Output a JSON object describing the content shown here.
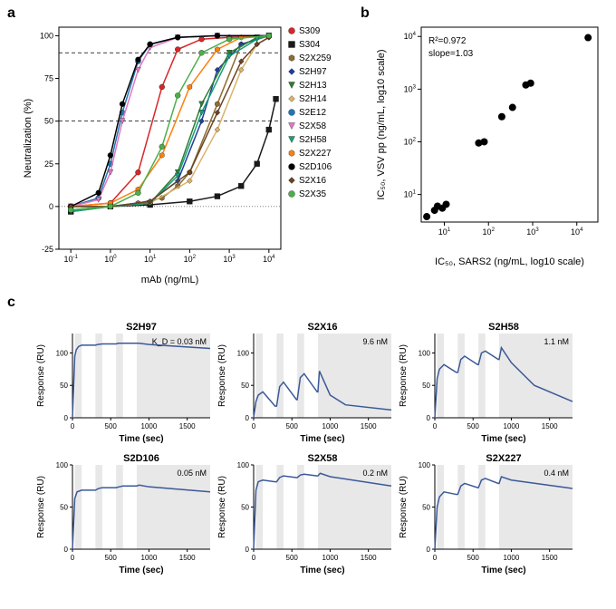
{
  "panel_a": {
    "label": "a",
    "type": "line",
    "xlabel": "mAb (ng/mL)",
    "ylabel": "Neutralization (%)",
    "xscale": "log",
    "xlim": [
      0.05,
      20000
    ],
    "ylim": [
      -25,
      105
    ],
    "yticks": [
      -25,
      0,
      25,
      50,
      75,
      100
    ],
    "xticks_exp": [
      -1,
      0,
      1,
      2,
      3,
      4
    ],
    "dash_lines_y": [
      50,
      90
    ],
    "legend": [
      {
        "name": "S309",
        "color": "#d62728",
        "marker": "circle"
      },
      {
        "name": "S304",
        "color": "#1a1a1a",
        "marker": "square"
      },
      {
        "name": "S2X259",
        "color": "#8c6d31",
        "marker": "hex"
      },
      {
        "name": "S2H97",
        "color": "#1f3f9e",
        "marker": "diamond"
      },
      {
        "name": "S2H13",
        "color": "#2e7d32",
        "marker": "tri-down"
      },
      {
        "name": "S2H14",
        "color": "#d9b36c",
        "marker": "diamond"
      },
      {
        "name": "S2E12",
        "color": "#1f77b4",
        "marker": "circle"
      },
      {
        "name": "S2X58",
        "color": "#e377c2",
        "marker": "tri-down"
      },
      {
        "name": "S2H58",
        "color": "#1b9e77",
        "marker": "tri-down"
      },
      {
        "name": "S2X227",
        "color": "#ff7f0e",
        "marker": "hex"
      },
      {
        "name": "S2D106",
        "color": "#000000",
        "marker": "circle"
      },
      {
        "name": "S2X16",
        "color": "#6b4423",
        "marker": "diamond"
      },
      {
        "name": "S2X35",
        "color": "#4daf4a",
        "marker": "circle"
      }
    ],
    "series": [
      {
        "name": "S309",
        "color": "#d62728",
        "marker": "circle",
        "x": [
          0.1,
          1,
          5,
          20,
          50,
          200,
          1000,
          10000
        ],
        "y": [
          0,
          2,
          20,
          70,
          92,
          98,
          99,
          100
        ]
      },
      {
        "name": "S304",
        "color": "#1a1a1a",
        "marker": "square",
        "x": [
          0.1,
          1,
          10,
          100,
          500,
          2000,
          5000,
          10000,
          15000
        ],
        "y": [
          -3,
          0,
          1,
          3,
          6,
          12,
          25,
          45,
          63
        ]
      },
      {
        "name": "S2X259",
        "color": "#8c6d31",
        "marker": "hex",
        "x": [
          0.1,
          1,
          5,
          20,
          50,
          100,
          500,
          2000,
          10000
        ],
        "y": [
          0,
          0,
          2,
          5,
          12,
          20,
          60,
          95,
          100
        ]
      },
      {
        "name": "S2H97",
        "color": "#1f3f9e",
        "marker": "diamond",
        "x": [
          0.1,
          1,
          10,
          50,
          200,
          500,
          2000,
          10000
        ],
        "y": [
          0,
          0,
          3,
          15,
          50,
          80,
          95,
          100
        ]
      },
      {
        "name": "S2H13",
        "color": "#2e7d32",
        "marker": "tri-down",
        "x": [
          0.1,
          1,
          10,
          50,
          200,
          1000,
          5000,
          10000
        ],
        "y": [
          -2,
          0,
          2,
          20,
          60,
          90,
          99,
          100
        ]
      },
      {
        "name": "S2H14",
        "color": "#d9b36c",
        "marker": "diamond",
        "x": [
          0.1,
          1,
          10,
          100,
          500,
          2000,
          5000,
          10000
        ],
        "y": [
          0,
          0,
          2,
          15,
          45,
          80,
          95,
          99
        ]
      },
      {
        "name": "S2E12",
        "color": "#1f77b4",
        "marker": "circle",
        "x": [
          0.1,
          0.5,
          1,
          2,
          5,
          10,
          50,
          500,
          10000
        ],
        "y": [
          0,
          5,
          25,
          55,
          85,
          95,
          99,
          100,
          100
        ]
      },
      {
        "name": "S2X58",
        "color": "#e377c2",
        "marker": "tri-down",
        "x": [
          0.1,
          0.5,
          1,
          2,
          5,
          10,
          50,
          500,
          10000
        ],
        "y": [
          0,
          4,
          20,
          50,
          80,
          93,
          99,
          100,
          100
        ]
      },
      {
        "name": "S2H58",
        "color": "#1b9e77",
        "marker": "tri-down",
        "x": [
          0.1,
          1,
          10,
          50,
          200,
          1000,
          5000,
          10000
        ],
        "y": [
          -3,
          0,
          2,
          18,
          55,
          88,
          98,
          100
        ]
      },
      {
        "name": "S2X227",
        "color": "#ff7f0e",
        "marker": "hex",
        "x": [
          0.1,
          1,
          5,
          20,
          100,
          500,
          2000,
          10000
        ],
        "y": [
          0,
          2,
          10,
          30,
          70,
          92,
          99,
          100
        ]
      },
      {
        "name": "S2D106",
        "color": "#000000",
        "marker": "circle",
        "x": [
          0.1,
          0.5,
          1,
          2,
          5,
          10,
          50,
          500,
          10000
        ],
        "y": [
          0,
          8,
          30,
          60,
          86,
          95,
          99,
          100,
          100
        ]
      },
      {
        "name": "S2X16",
        "color": "#6b4423",
        "marker": "diamond",
        "x": [
          0.1,
          1,
          10,
          100,
          500,
          2000,
          5000,
          10000
        ],
        "y": [
          0,
          0,
          3,
          20,
          55,
          85,
          95,
          99
        ]
      },
      {
        "name": "S2X35",
        "color": "#4daf4a",
        "marker": "circle",
        "x": [
          0.1,
          1,
          5,
          20,
          50,
          200,
          1000,
          10000
        ],
        "y": [
          -2,
          0,
          8,
          35,
          65,
          90,
          98,
          100
        ]
      }
    ],
    "label_fontsize": 11,
    "tick_fontsize": 9,
    "axis_color": "#000000",
    "background_color": "#ffffff"
  },
  "panel_b": {
    "label": "b",
    "type": "scatter",
    "xlabel": "IC₅₀, SARS2 (ng/mL, log10 scale)",
    "ylabel": "IC₅₀, VSV pp (ng/mL, log10 scale)",
    "xscale": "log",
    "yscale": "log",
    "xlim": [
      3,
      30000
    ],
    "ylim": [
      3,
      15000
    ],
    "xticks_exp": [
      1,
      2,
      3,
      4
    ],
    "yticks_exp": [
      1,
      2,
      3,
      4
    ],
    "annotation": [
      "R²=0.972",
      "slope=1.03"
    ],
    "points": [
      {
        "x": 4,
        "y": 3.8
      },
      {
        "x": 6,
        "y": 5
      },
      {
        "x": 7,
        "y": 6
      },
      {
        "x": 9,
        "y": 5.5
      },
      {
        "x": 11,
        "y": 6.5
      },
      {
        "x": 60,
        "y": 95
      },
      {
        "x": 80,
        "y": 100
      },
      {
        "x": 200,
        "y": 300
      },
      {
        "x": 350,
        "y": 450
      },
      {
        "x": 700,
        "y": 1200
      },
      {
        "x": 900,
        "y": 1300
      },
      {
        "x": 18000,
        "y": 9500
      }
    ],
    "marker_color": "#000000",
    "marker_size": 4,
    "label_fontsize": 11,
    "tick_fontsize": 9
  },
  "panel_c": {
    "label": "c",
    "type": "line",
    "xlabel": "Time (sec)",
    "ylabel": "Response (RU)",
    "xlim": [
      0,
      1800
    ],
    "ylim_top": [
      0,
      130
    ],
    "ylim_bottom": [
      0,
      100
    ],
    "xticks": [
      0,
      500,
      1000,
      1500
    ],
    "yticks_top": [
      0,
      50,
      100
    ],
    "yticks_bottom": [
      0,
      50,
      100
    ],
    "line_color": "#3b5998",
    "shade_color": "#e8e8e8",
    "shade_regions": [
      [
        30,
        120
      ],
      [
        300,
        390
      ],
      [
        570,
        660
      ],
      [
        840,
        1800
      ]
    ],
    "line_width": 1.5,
    "subplots": [
      {
        "title": "S2H97",
        "kd_prefix": "K_D = ",
        "kd": "0.03 nM",
        "row": 0,
        "col": 0,
        "x": [
          0,
          30,
          50,
          80,
          120,
          280,
          300,
          330,
          390,
          560,
          570,
          600,
          660,
          830,
          840,
          870,
          1000,
          1800
        ],
        "y": [
          0,
          95,
          105,
          110,
          112,
          112,
          112,
          113,
          114,
          114,
          114,
          115,
          115,
          115,
          115,
          115,
          113,
          107
        ]
      },
      {
        "title": "S2X16",
        "kd": "9.6 nM",
        "row": 0,
        "col": 1,
        "x": [
          0,
          30,
          60,
          120,
          280,
          300,
          340,
          390,
          560,
          570,
          610,
          660,
          830,
          840,
          860,
          1000,
          1200,
          1800
        ],
        "y": [
          0,
          25,
          35,
          40,
          18,
          18,
          48,
          55,
          28,
          28,
          62,
          68,
          40,
          40,
          72,
          35,
          20,
          12
        ]
      },
      {
        "title": "S2H58",
        "kd": "1.1 nM",
        "row": 0,
        "col": 2,
        "x": [
          0,
          30,
          60,
          120,
          280,
          300,
          340,
          390,
          560,
          570,
          610,
          660,
          830,
          840,
          870,
          1000,
          1300,
          1800
        ],
        "y": [
          0,
          60,
          75,
          82,
          70,
          70,
          90,
          95,
          82,
          82,
          100,
          103,
          90,
          90,
          108,
          85,
          50,
          25
        ]
      },
      {
        "title": "S2D106",
        "kd": "0.05 nM",
        "row": 1,
        "col": 0,
        "x": [
          0,
          30,
          60,
          120,
          280,
          300,
          340,
          390,
          560,
          570,
          610,
          660,
          830,
          840,
          870,
          1000,
          1800
        ],
        "y": [
          0,
          60,
          68,
          70,
          70,
          70,
          72,
          73,
          73,
          73,
          74,
          75,
          75,
          75,
          76,
          74,
          68
        ]
      },
      {
        "title": "S2X58",
        "kd": "0.2 nM",
        "row": 1,
        "col": 1,
        "x": [
          0,
          30,
          60,
          120,
          280,
          300,
          340,
          390,
          560,
          570,
          610,
          660,
          830,
          840,
          870,
          1000,
          1800
        ],
        "y": [
          0,
          70,
          80,
          82,
          80,
          80,
          85,
          87,
          85,
          85,
          88,
          89,
          87,
          87,
          90,
          86,
          75
        ]
      },
      {
        "title": "S2X227",
        "kd": "0.4 nM",
        "row": 1,
        "col": 2,
        "x": [
          0,
          30,
          60,
          120,
          280,
          300,
          340,
          390,
          560,
          570,
          610,
          660,
          830,
          840,
          870,
          1000,
          1800
        ],
        "y": [
          0,
          50,
          62,
          68,
          65,
          65,
          75,
          78,
          73,
          73,
          82,
          84,
          78,
          78,
          86,
          82,
          72
        ]
      }
    ],
    "label_fontsize": 10,
    "tick_fontsize": 8
  }
}
